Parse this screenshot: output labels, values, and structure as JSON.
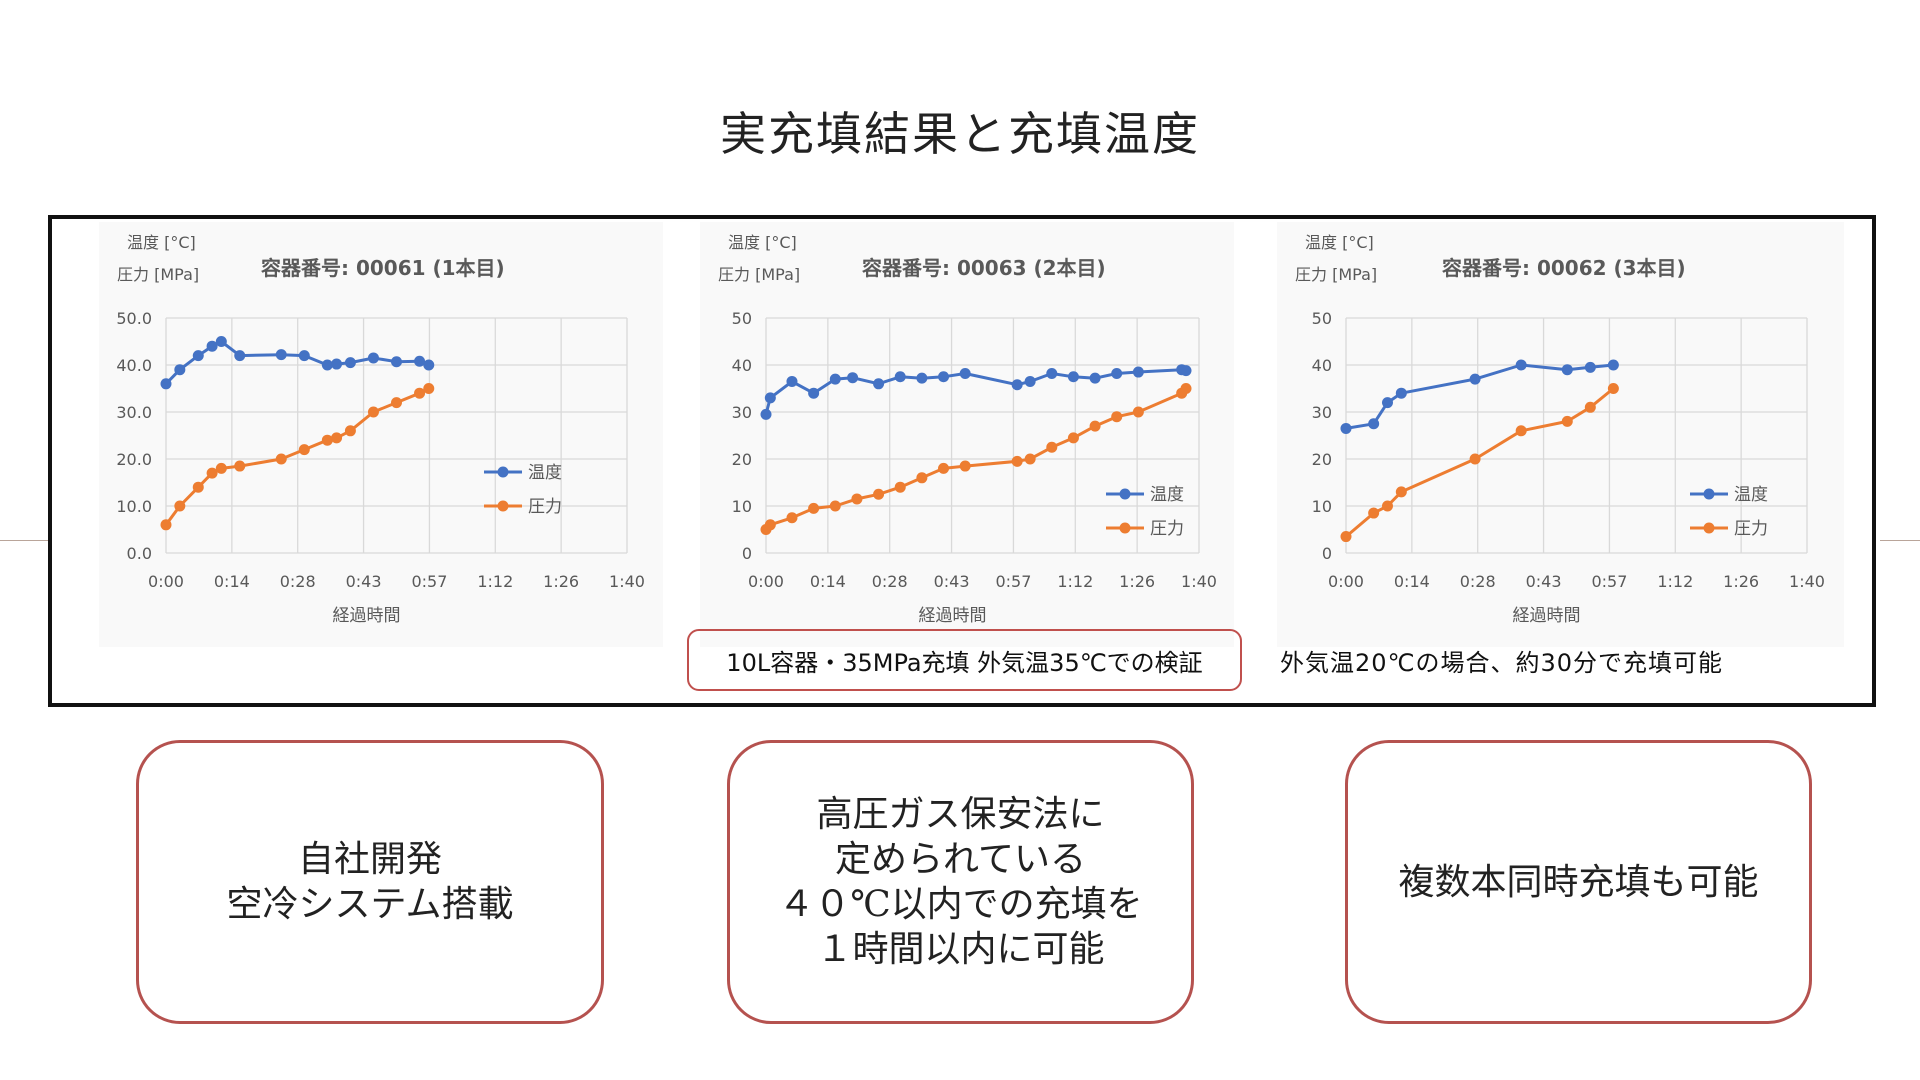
{
  "slide_title": "実充填結果と充填温度",
  "colors": {
    "temperature": "#4472c4",
    "pressure": "#ed7d31",
    "grid": "#d9d9d9",
    "frame": "#111111",
    "bubble_border": "#b5524f"
  },
  "chart_data": [
    {
      "type": "line",
      "title": "容器番号: 00061 (1本目)",
      "ylabel_lines": [
        "温度 [°C]",
        "圧力 [MPa]"
      ],
      "xlabel": "経過時間",
      "x_ticks": [
        "0:00",
        "0:14",
        "0:28",
        "0:43",
        "0:57",
        "1:12",
        "1:26",
        "1:40"
      ],
      "x_range_minutes": [
        0,
        100
      ],
      "y_ticks": [
        "0.0",
        "10.0",
        "20.0",
        "30.0",
        "40.0",
        "50.0"
      ],
      "ylim": [
        0,
        50
      ],
      "legend_position": "right-middle",
      "series": [
        {
          "name": "温度",
          "x_minutes": [
            0,
            3,
            7,
            10,
            12,
            16,
            25,
            30,
            35,
            37,
            40,
            45,
            50,
            55,
            57
          ],
          "values": [
            36,
            39,
            42,
            44,
            45,
            42,
            42.2,
            42,
            40,
            40.2,
            40.5,
            41.5,
            40.7,
            40.8,
            40
          ]
        },
        {
          "name": "圧力",
          "x_minutes": [
            0,
            3,
            7,
            10,
            12,
            16,
            25,
            30,
            35,
            37,
            40,
            45,
            50,
            55,
            57
          ],
          "values": [
            6,
            10,
            14,
            17,
            18,
            18.5,
            20,
            22,
            24,
            24.5,
            26,
            30,
            32,
            34,
            35
          ]
        }
      ]
    },
    {
      "type": "line",
      "title": "容器番号: 00063 (2本目)",
      "ylabel_lines": [
        "温度 [°C]",
        "圧力 [MPa]"
      ],
      "xlabel": "経過時間",
      "x_ticks": [
        "0:00",
        "0:14",
        "0:28",
        "0:43",
        "0:57",
        "1:12",
        "1:26",
        "1:40"
      ],
      "x_range_minutes": [
        0,
        100
      ],
      "y_ticks": [
        "0",
        "10",
        "20",
        "30",
        "40",
        "50"
      ],
      "ylim": [
        0,
        50
      ],
      "legend_position": "lower-right",
      "series": [
        {
          "name": "温度",
          "x_minutes": [
            0,
            1,
            6,
            11,
            16,
            20,
            26,
            31,
            36,
            41,
            46,
            58,
            61,
            66,
            71,
            76,
            81,
            86,
            96,
            97
          ],
          "values": [
            29.5,
            33,
            36.5,
            34,
            37,
            37.3,
            36,
            37.5,
            37.2,
            37.5,
            38.2,
            35.8,
            36.5,
            38.2,
            37.5,
            37.2,
            38.2,
            38.5,
            39,
            38.8
          ]
        },
        {
          "name": "圧力",
          "x_minutes": [
            0,
            1,
            6,
            11,
            16,
            21,
            26,
            31,
            36,
            41,
            46,
            58,
            61,
            66,
            71,
            76,
            81,
            86,
            96,
            97
          ],
          "values": [
            5,
            6,
            7.5,
            9.5,
            10,
            11.5,
            12.5,
            14,
            16,
            18,
            18.5,
            19.5,
            20,
            22.5,
            24.5,
            27,
            29,
            30,
            34,
            35
          ]
        }
      ]
    },
    {
      "type": "line",
      "title": "容器番号: 00062 (3本目)",
      "ylabel_lines": [
        "温度 [°C]",
        "圧力 [MPa]"
      ],
      "xlabel": "経過時間",
      "x_ticks": [
        "0:00",
        "0:14",
        "0:28",
        "0:43",
        "0:57",
        "1:12",
        "1:26",
        "1:40"
      ],
      "x_range_minutes": [
        0,
        100
      ],
      "y_ticks": [
        "0",
        "10",
        "20",
        "30",
        "40",
        "50"
      ],
      "ylim": [
        0,
        50
      ],
      "legend_position": "lower-right",
      "series": [
        {
          "name": "温度",
          "x_minutes": [
            0,
            6,
            9,
            12,
            28,
            38,
            48,
            53,
            58
          ],
          "values": [
            26.5,
            27.5,
            32,
            34,
            37,
            40,
            39,
            39.5,
            40
          ]
        },
        {
          "name": "圧力",
          "x_minutes": [
            0,
            6,
            9,
            12,
            28,
            38,
            48,
            53,
            58
          ],
          "values": [
            3.5,
            8.5,
            10,
            13,
            20,
            26,
            28,
            31,
            35
          ]
        }
      ]
    }
  ],
  "notes": {
    "boxed": "10L容器・35MPa充填 外気温35℃での検証",
    "plain": "外気温20℃の場合、約30分で充填可能"
  },
  "bubbles": [
    {
      "lines": [
        "自社開発",
        "空冷システム搭載"
      ]
    },
    {
      "lines": [
        "高圧ガス保安法に",
        "定められている",
        "４０℃以内での充填を",
        "１時間以内に可能"
      ]
    },
    {
      "lines": [
        "複数本同時充填も可能"
      ]
    }
  ]
}
